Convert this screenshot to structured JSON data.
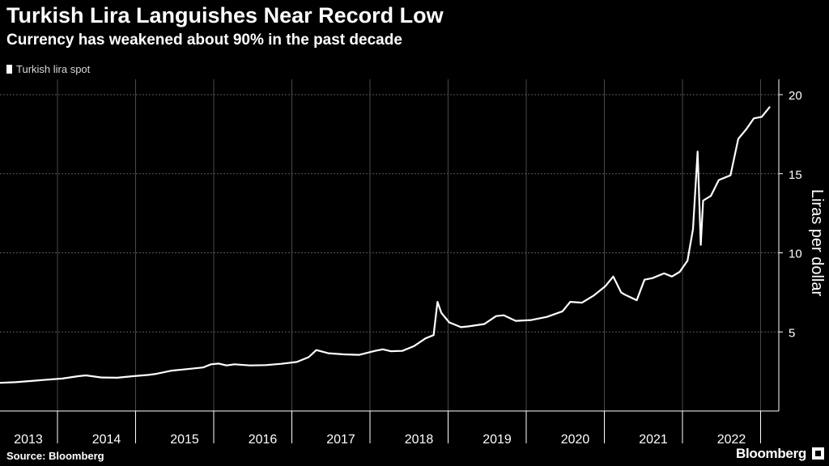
{
  "header": {
    "title": "Turkish Lira Languishes Near Record Low",
    "subtitle": "Currency has weakened about 90% in the past decade"
  },
  "footer": {
    "source": "Source: Bloomberg",
    "brand": "Bloomberg"
  },
  "colors": {
    "background": "#000000",
    "line": "#ffffff",
    "grid": "#666666",
    "text": "#ffffff"
  },
  "chart_data": {
    "type": "line",
    "title": "Turkish Lira Languishes Near Record Low",
    "subtitle": "Currency has weakened about 90% in the past decade",
    "ylabel": "Liras per dollar",
    "xlabel": "",
    "x_ticks": [
      "2013",
      "2014",
      "2015",
      "2016",
      "2017",
      "2018",
      "2019",
      "2020",
      "2021",
      "2022"
    ],
    "y_ticks": [
      5,
      10,
      15,
      20
    ],
    "ylim": [
      0,
      20
    ],
    "xlim": [
      2013.0,
      2022.85
    ],
    "grid": "horizontal dashed",
    "legend_placement": "top-left",
    "series": [
      {
        "name": "Turkish lira spot",
        "color": "#ffffff",
        "points": [
          [
            2013.0,
            1.78
          ],
          [
            2013.2,
            1.82
          ],
          [
            2013.4,
            1.9
          ],
          [
            2013.6,
            1.98
          ],
          [
            2013.8,
            2.05
          ],
          [
            2014.0,
            2.2
          ],
          [
            2014.1,
            2.25
          ],
          [
            2014.3,
            2.12
          ],
          [
            2014.5,
            2.1
          ],
          [
            2014.7,
            2.2
          ],
          [
            2014.9,
            2.28
          ],
          [
            2015.0,
            2.35
          ],
          [
            2015.2,
            2.55
          ],
          [
            2015.4,
            2.65
          ],
          [
            2015.6,
            2.75
          ],
          [
            2015.7,
            2.95
          ],
          [
            2015.8,
            3.0
          ],
          [
            2015.9,
            2.88
          ],
          [
            2016.0,
            2.95
          ],
          [
            2016.2,
            2.88
          ],
          [
            2016.4,
            2.9
          ],
          [
            2016.6,
            2.98
          ],
          [
            2016.8,
            3.1
          ],
          [
            2016.95,
            3.4
          ],
          [
            2017.05,
            3.85
          ],
          [
            2017.2,
            3.65
          ],
          [
            2017.4,
            3.58
          ],
          [
            2017.6,
            3.55
          ],
          [
            2017.8,
            3.8
          ],
          [
            2017.9,
            3.9
          ],
          [
            2018.0,
            3.78
          ],
          [
            2018.15,
            3.8
          ],
          [
            2018.3,
            4.1
          ],
          [
            2018.45,
            4.6
          ],
          [
            2018.55,
            4.8
          ],
          [
            2018.6,
            6.9
          ],
          [
            2018.65,
            6.2
          ],
          [
            2018.75,
            5.6
          ],
          [
            2018.9,
            5.3
          ],
          [
            2019.0,
            5.35
          ],
          [
            2019.2,
            5.5
          ],
          [
            2019.35,
            6.0
          ],
          [
            2019.45,
            6.05
          ],
          [
            2019.6,
            5.7
          ],
          [
            2019.8,
            5.75
          ],
          [
            2020.0,
            5.95
          ],
          [
            2020.2,
            6.3
          ],
          [
            2020.3,
            6.9
          ],
          [
            2020.45,
            6.85
          ],
          [
            2020.6,
            7.3
          ],
          [
            2020.75,
            7.9
          ],
          [
            2020.85,
            8.5
          ],
          [
            2020.95,
            7.5
          ],
          [
            2021.0,
            7.35
          ],
          [
            2021.15,
            7.0
          ],
          [
            2021.25,
            8.3
          ],
          [
            2021.35,
            8.4
          ],
          [
            2021.5,
            8.7
          ],
          [
            2021.6,
            8.5
          ],
          [
            2021.7,
            8.8
          ],
          [
            2021.8,
            9.5
          ],
          [
            2021.87,
            11.5
          ],
          [
            2021.93,
            16.4
          ],
          [
            2021.97,
            10.5
          ],
          [
            2022.0,
            13.3
          ],
          [
            2022.1,
            13.6
          ],
          [
            2022.2,
            14.6
          ],
          [
            2022.35,
            14.9
          ],
          [
            2022.45,
            17.2
          ],
          [
            2022.55,
            17.8
          ],
          [
            2022.65,
            18.5
          ],
          [
            2022.75,
            18.6
          ],
          [
            2022.85,
            19.2
          ]
        ]
      }
    ]
  }
}
